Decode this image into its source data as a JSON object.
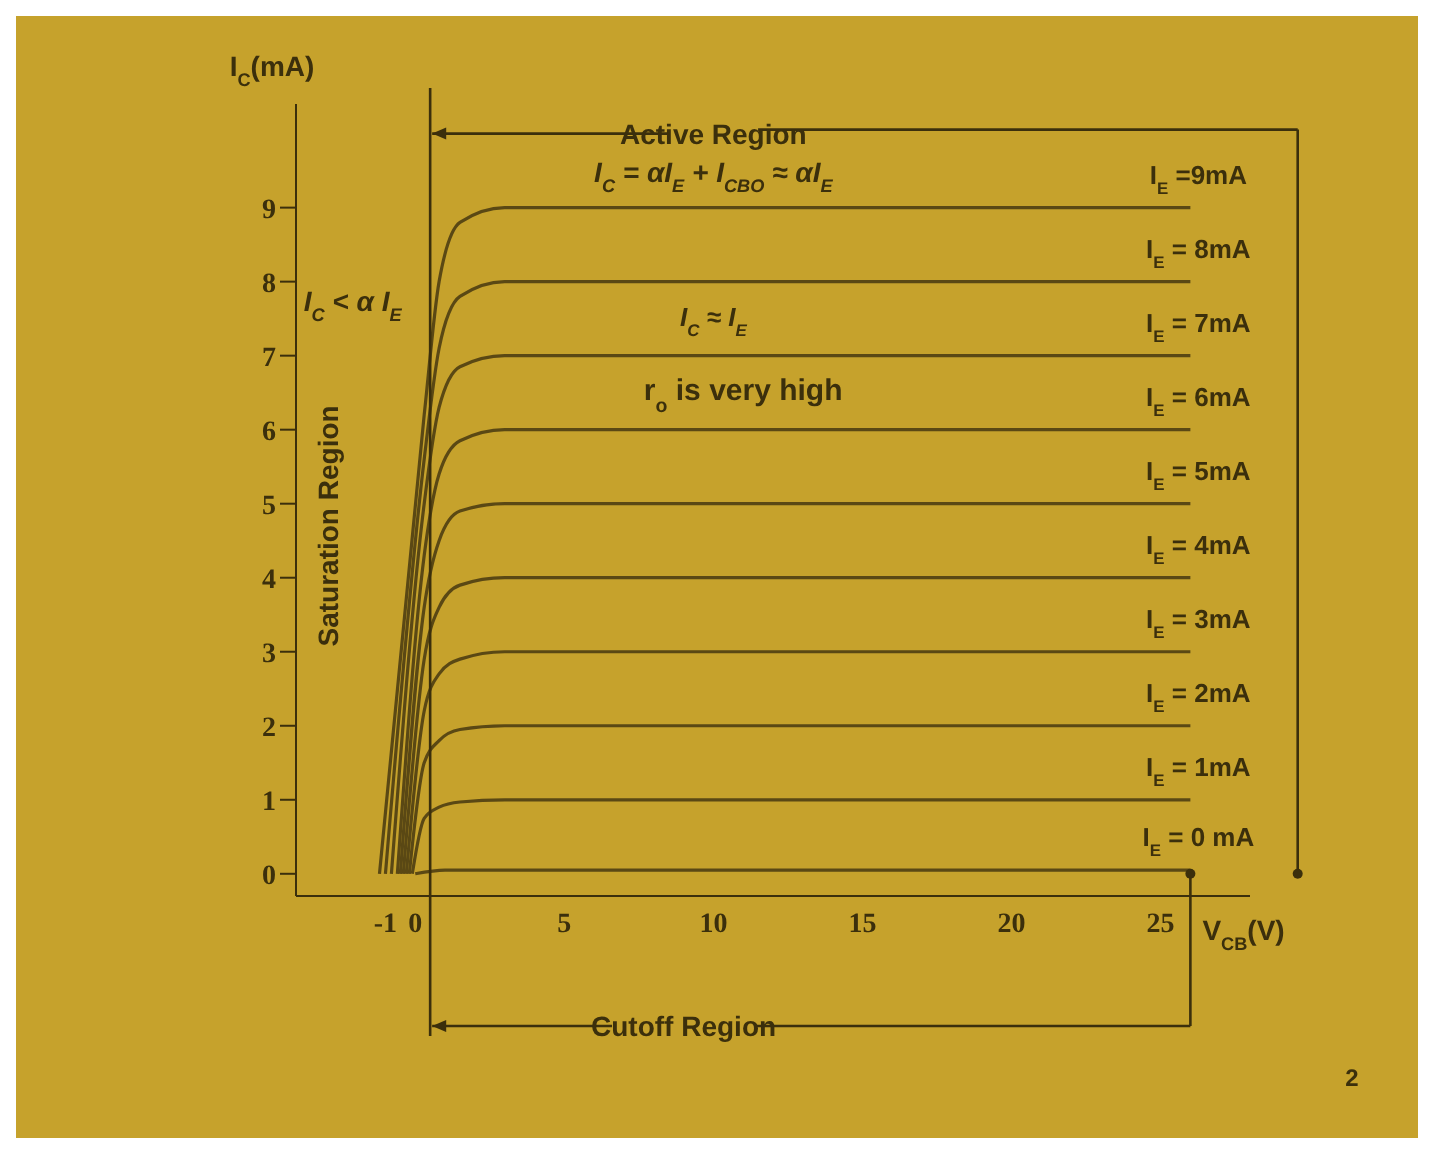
{
  "chart_data": {
    "type": "line",
    "xlabel": "V$_{CB}$(V)",
    "ylabel": "I$_{C}$(mA)",
    "xlim": [
      -4,
      28
    ],
    "xticks": [
      -1,
      0,
      5,
      10,
      15,
      20,
      25
    ],
    "ylim": [
      -0.3,
      10.4
    ],
    "yticks": [
      0,
      1,
      2,
      3,
      4,
      5,
      6,
      7,
      8,
      9
    ],
    "marker": "none",
    "line_style": "solid",
    "ref_lines": [
      {
        "axis": "x",
        "value": 0.5
      }
    ],
    "annotations": [
      {
        "text": "Active Region",
        "x": 0.5,
        "y": 10
      },
      "Cutoff Region",
      "Saturation Region",
      "I$_{C}$ < α I$_{E}$",
      "I$_{C}$ = αI$_{E}$ + I$_{CBO}$ ≈ αI$_{E}$",
      "I$_{C}$ ≈ I$_{E}$",
      "r$_{o}$ is very high",
      "2"
    ],
    "series": [
      {
        "name": "I$_{E}$ = 0 mA",
        "color": "#5a4814",
        "x": [
          0,
          1,
          26
        ],
        "values": [
          0,
          0.05,
          0.05
        ]
      },
      {
        "name": "I$_{E}$ = 1mA",
        "color": "#5a4814",
        "x": [
          -0.1,
          0.3,
          0.8,
          1.5,
          3,
          26
        ],
        "values": [
          0,
          0.75,
          0.9,
          0.97,
          1,
          1
        ]
      },
      {
        "name": "I$_{E}$ = 2mA",
        "color": "#5a4814",
        "x": [
          -0.2,
          0.3,
          0.8,
          1.5,
          3,
          26
        ],
        "values": [
          0,
          1.5,
          1.8,
          1.95,
          2,
          2
        ]
      },
      {
        "name": "I$_{E}$ = 3mA",
        "color": "#5a4814",
        "x": [
          -0.3,
          0.3,
          0.8,
          1.5,
          3,
          26
        ],
        "values": [
          0,
          2.2,
          2.7,
          2.9,
          3,
          3
        ]
      },
      {
        "name": "I$_{E}$ = 4mA",
        "color": "#5a4814",
        "x": [
          -0.4,
          0.3,
          0.8,
          1.5,
          3,
          26
        ],
        "values": [
          0,
          2.9,
          3.6,
          3.9,
          4,
          4
        ]
      },
      {
        "name": "I$_{E}$ = 5mA",
        "color": "#5a4814",
        "x": [
          -0.5,
          0.3,
          0.8,
          1.5,
          3,
          26
        ],
        "values": [
          0,
          3.6,
          4.5,
          4.9,
          5,
          5
        ]
      },
      {
        "name": "I$_{E}$ = 6mA",
        "color": "#5a4814",
        "x": [
          -0.6,
          0.3,
          0.8,
          1.5,
          3,
          26
        ],
        "values": [
          0,
          4.3,
          5.4,
          5.85,
          6,
          6
        ]
      },
      {
        "name": "I$_{E}$ = 7mA",
        "color": "#5a4814",
        "x": [
          -0.8,
          0.3,
          0.8,
          1.5,
          3,
          26
        ],
        "values": [
          0,
          5,
          6.3,
          6.85,
          7,
          7
        ]
      },
      {
        "name": "I$_{E}$ = 8mA",
        "color": "#5a4814",
        "x": [
          -1,
          0.3,
          0.8,
          1.5,
          3,
          26
        ],
        "values": [
          0,
          5.6,
          7.1,
          7.8,
          8,
          8
        ]
      },
      {
        "name": "I$_{E}$ =9mA",
        "color": "#5a4814",
        "x": [
          -1.2,
          0.3,
          0.8,
          1.5,
          3,
          26
        ],
        "values": [
          0,
          6.2,
          8,
          8.8,
          9,
          9
        ]
      }
    ]
  }
}
